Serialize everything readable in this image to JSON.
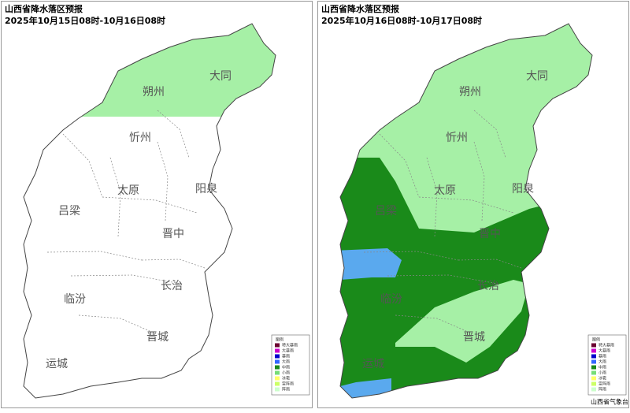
{
  "panels": [
    {
      "title": "山西省降水落区预报",
      "date_range": "2025年10月15日08时-10月16日08时",
      "cities": [
        "大同",
        "朔州",
        "忻州",
        "太原",
        "阳泉",
        "吕梁",
        "晋中",
        "长治",
        "临汾",
        "晋城",
        "运城"
      ],
      "legend": {
        "header": "图例",
        "items": [
          "特大暴雨",
          "大暴雨",
          "暴雨",
          "大雨",
          "中雨",
          "小雨",
          "冰雹",
          "雷阵雨",
          "阵雨"
        ]
      }
    },
    {
      "title": "山西省降水落区预报",
      "date_range": "2025年10月16日08时-10月17日08时",
      "cities": [
        "大同",
        "朔州",
        "忻州",
        "太原",
        "阳泉",
        "吕梁",
        "晋中",
        "长治",
        "临汾",
        "晋城",
        "运城"
      ],
      "legend": {
        "header": "图例",
        "items": [
          "特大暴雨",
          "大暴雨",
          "暴雨",
          "大雨",
          "中雨",
          "小雨",
          "冰雹",
          "雷阵雨",
          "阵雨"
        ]
      },
      "footer": "山西省气象台"
    }
  ]
}
